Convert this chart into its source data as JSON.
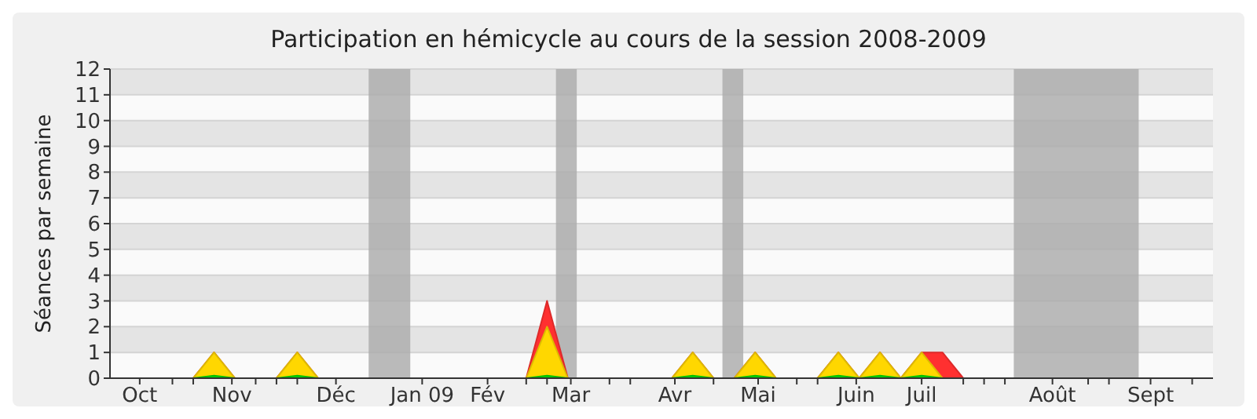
{
  "chart_data": {
    "type": "area",
    "title": "Participation en hémicycle au cours de la session 2008-2009",
    "ylabel": "Séances par semaine",
    "x": [
      "2008-09-29",
      "2008-10-06",
      "2008-10-13",
      "2008-10-20",
      "2008-10-27",
      "2008-11-03",
      "2008-11-10",
      "2008-11-17",
      "2008-11-24",
      "2008-12-01",
      "2008-12-08",
      "2008-12-15",
      "2008-12-22",
      "2008-12-29",
      "2009-01-05",
      "2009-01-12",
      "2009-01-19",
      "2009-01-26",
      "2009-02-02",
      "2009-02-09",
      "2009-02-16",
      "2009-02-23",
      "2009-03-02",
      "2009-03-09",
      "2009-03-16",
      "2009-03-23",
      "2009-03-30",
      "2009-04-06",
      "2009-04-13",
      "2009-04-20",
      "2009-04-27",
      "2009-05-04",
      "2009-05-11",
      "2009-05-18",
      "2009-05-25",
      "2009-06-01",
      "2009-06-08",
      "2009-06-15",
      "2009-06-22",
      "2009-06-29",
      "2009-07-06",
      "2009-07-13",
      "2009-07-20",
      "2009-07-27",
      "2009-08-03",
      "2009-08-10",
      "2009-08-17",
      "2009-08-24",
      "2009-08-31",
      "2009-09-07",
      "2009-09-14",
      "2009-09-21",
      "2009-09-28"
    ],
    "series": [
      {
        "color": "#ff3030",
        "values": [
          0,
          0,
          0,
          0,
          0,
          1,
          0,
          0,
          0,
          1,
          0,
          0,
          0,
          0,
          0,
          0,
          0,
          0,
          0,
          0,
          0,
          3,
          0,
          0,
          0,
          0,
          0,
          0,
          1,
          0,
          0,
          1,
          0,
          0,
          0,
          1,
          0,
          1,
          0,
          1,
          1,
          0,
          0,
          0,
          0,
          0,
          0,
          0,
          0,
          0,
          0,
          0,
          0
        ]
      },
      {
        "color": "#ffd700",
        "values": [
          0,
          0,
          0,
          0,
          0,
          1,
          0,
          0,
          0,
          1,
          0,
          0,
          0,
          0,
          0,
          0,
          0,
          0,
          0,
          0,
          0,
          2,
          0,
          0,
          0,
          0,
          0,
          0,
          1,
          0,
          0,
          1,
          0,
          0,
          0,
          1,
          0,
          1,
          0,
          1,
          0,
          0,
          0,
          0,
          0,
          0,
          0,
          0,
          0,
          0,
          0,
          0,
          0
        ]
      },
      {
        "color": "#00dd00",
        "values": [
          0,
          0,
          0,
          0,
          0,
          0.1,
          0,
          0,
          0,
          0.1,
          0,
          0,
          0,
          0,
          0,
          0,
          0,
          0,
          0,
          0,
          0,
          0.1,
          0,
          0,
          0,
          0,
          0,
          0,
          0.1,
          0,
          0,
          0.1,
          0,
          0,
          0,
          0.1,
          0,
          0.1,
          0,
          0.1,
          0,
          0,
          0,
          0,
          0,
          0,
          0,
          0,
          0,
          0,
          0,
          0,
          0
        ]
      }
    ],
    "xlim": [
      "2008-09-29",
      "2009-10-05"
    ],
    "xticks": [
      {
        "value": "2008-10-09",
        "label": "Oct"
      },
      {
        "value": "2008-11-09",
        "label": "Nov"
      },
      {
        "value": "2008-12-14",
        "label": "Déc"
      },
      {
        "value": "2009-01-12",
        "label": "Jan 09"
      },
      {
        "value": "2009-02-03",
        "label": "Fév"
      },
      {
        "value": "2009-03-03",
        "label": "Mar"
      },
      {
        "value": "2009-04-07",
        "label": "Avr"
      },
      {
        "value": "2009-05-05",
        "label": "Mai"
      },
      {
        "value": "2009-06-07",
        "label": "Juin"
      },
      {
        "value": "2009-06-29",
        "label": "Juil"
      },
      {
        "value": "2009-08-12",
        "label": "Août"
      },
      {
        "value": "2009-09-14",
        "label": "Sept"
      },
      {
        "value": "2008-10-20",
        "label": null
      },
      {
        "value": "2008-10-27",
        "label": null
      },
      {
        "value": "2008-11-17",
        "label": null
      },
      {
        "value": "2008-11-24",
        "label": null
      },
      {
        "value": "2008-12-01",
        "label": null
      },
      {
        "value": "2009-02-16",
        "label": null
      },
      {
        "value": "2009-02-23",
        "label": null
      },
      {
        "value": "2009-03-16",
        "label": null
      },
      {
        "value": "2009-03-23",
        "label": null
      },
      {
        "value": "2009-04-20",
        "label": null
      },
      {
        "value": "2009-05-18",
        "label": null
      },
      {
        "value": "2009-05-25",
        "label": null
      },
      {
        "value": "2009-07-13",
        "label": null
      },
      {
        "value": "2009-07-20",
        "label": null
      },
      {
        "value": "2009-07-27",
        "label": null
      },
      {
        "value": "2009-08-24",
        "label": null
      },
      {
        "value": "2009-08-31",
        "label": null
      },
      {
        "value": "2009-09-28",
        "label": null
      }
    ],
    "ylim": [
      0,
      12
    ],
    "yticks": [
      0,
      1,
      2,
      3,
      4,
      5,
      6,
      7,
      8,
      9,
      10,
      11,
      12
    ],
    "grid": "y",
    "bands": [
      {
        "axis": "x",
        "from": "2008-12-25",
        "to": "2009-01-08",
        "color": "#aaaaaa"
      },
      {
        "axis": "x",
        "from": "2009-02-26",
        "to": "2009-03-05",
        "color": "#aaaaaa"
      },
      {
        "axis": "x",
        "from": "2009-04-23",
        "to": "2009-04-30",
        "color": "#aaaaaa"
      },
      {
        "axis": "x",
        "from": "2009-07-30",
        "to": "2009-09-10",
        "color": "#aaaaaa"
      }
    ]
  }
}
